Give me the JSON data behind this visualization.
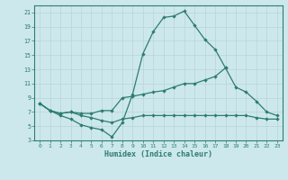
{
  "xlabel": "Humidex (Indice chaleur)",
  "bg_color": "#cce8ec",
  "line_color": "#2e7d6e",
  "grid_color": "#b8d4d8",
  "xlim": [
    -0.5,
    23.5
  ],
  "ylim": [
    3,
    22
  ],
  "xticks": [
    0,
    1,
    2,
    3,
    4,
    5,
    6,
    7,
    8,
    9,
    10,
    11,
    12,
    13,
    14,
    15,
    16,
    17,
    18,
    19,
    20,
    21,
    22,
    23
  ],
  "yticks": [
    3,
    5,
    7,
    9,
    11,
    13,
    15,
    17,
    19,
    21
  ],
  "line1_x": [
    0,
    1,
    2,
    3,
    4,
    5,
    6,
    7,
    8,
    9,
    10,
    11,
    12,
    13,
    14,
    15,
    16,
    17,
    18,
    19,
    20,
    21,
    22,
    23
  ],
  "line1_y": [
    8.2,
    7.2,
    6.5,
    6.0,
    5.2,
    4.8,
    4.5,
    3.5,
    5.5,
    9.5,
    15.2,
    18.3,
    20.3,
    20.5,
    21.2,
    19.2,
    17.2,
    15.8,
    13.2,
    null,
    null,
    null,
    null,
    null
  ],
  "line2_x": [
    0,
    1,
    2,
    3,
    4,
    5,
    6,
    7,
    8,
    9,
    10,
    11,
    12,
    13,
    14,
    15,
    16,
    17,
    18,
    19,
    20,
    21,
    22,
    23
  ],
  "line2_y": [
    8.2,
    7.2,
    6.8,
    7.0,
    6.8,
    6.8,
    7.2,
    7.2,
    9.0,
    9.2,
    9.5,
    9.8,
    10.0,
    10.5,
    11.0,
    11.0,
    11.5,
    12.0,
    13.2,
    10.5,
    9.8,
    8.5,
    7.0,
    6.5
  ],
  "line3_x": [
    0,
    1,
    2,
    3,
    4,
    5,
    6,
    7,
    8,
    9,
    10,
    11,
    12,
    13,
    14,
    15,
    16,
    17,
    18,
    19,
    20,
    21,
    22,
    23
  ],
  "line3_y": [
    8.2,
    7.2,
    6.8,
    7.0,
    6.5,
    6.2,
    5.8,
    5.5,
    6.0,
    6.2,
    6.5,
    6.5,
    6.5,
    6.5,
    6.5,
    6.5,
    6.5,
    6.5,
    6.5,
    6.5,
    6.5,
    6.2,
    6.0,
    6.0
  ]
}
